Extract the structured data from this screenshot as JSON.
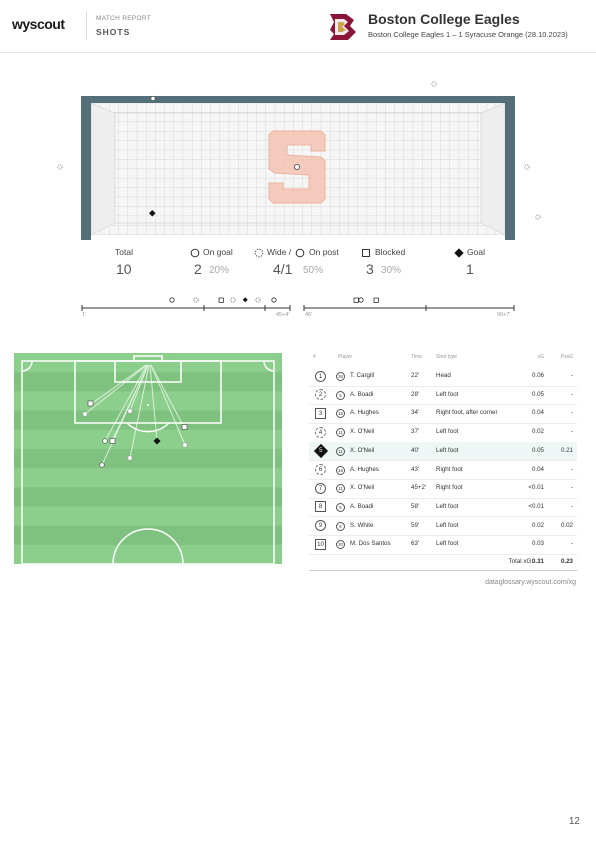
{
  "header": {
    "logo": "wyscout",
    "report_title": "MATCH REPORT",
    "report_subtitle": "SHOTS",
    "team_name": "Boston College Eagles",
    "match": "Boston College Eagles 1 – 1 Syracuse Orange (28.10.2023)",
    "crest_icon": "boston-college-crest-icon"
  },
  "stats": {
    "total": {
      "label": "Total",
      "value": "10"
    },
    "on_goal": {
      "label": "On goal",
      "value": "2",
      "pct": "20%"
    },
    "wide_post": {
      "label_a": "Wide /",
      "label_b": "On post",
      "value": "4/1",
      "pct": "50%"
    },
    "blocked": {
      "label": "Blocked",
      "value": "3",
      "pct": "30%"
    },
    "goal": {
      "label": "Goal",
      "value": "1"
    }
  },
  "timeline": {
    "first_half": {
      "start": "1'",
      "end": "45+4'"
    },
    "second_half": {
      "start": "46'",
      "end": "90+7'"
    }
  },
  "table": {
    "headers": {
      "num": "#",
      "player": "Player",
      "time": "Time",
      "type": "Shot type",
      "xg": "xG",
      "psxg": "PsxG"
    },
    "rows": [
      {
        "n": "1",
        "shape": "circle",
        "pnum": "26",
        "player": "T. Cargill",
        "time": "22'",
        "type": "Head",
        "xg": "0.06",
        "psxg": "-"
      },
      {
        "n": "2",
        "shape": "dashed",
        "pnum": "5",
        "player": "A. Boadi",
        "time": "28'",
        "type": "Left foot",
        "xg": "0.05",
        "psxg": "-"
      },
      {
        "n": "3",
        "shape": "square",
        "pnum": "16",
        "player": "A. Hughes",
        "time": "34'",
        "type": "Right foot, after corner",
        "xg": "0.04",
        "psxg": "-"
      },
      {
        "n": "4",
        "shape": "dashed",
        "pnum": "11",
        "player": "X. O'Neil",
        "time": "37'",
        "type": "Left foot",
        "xg": "0.02",
        "psxg": "-"
      },
      {
        "n": "5",
        "shape": "goal",
        "pnum": "11",
        "player": "X. O'Neil",
        "time": "40'",
        "type": "Left foot",
        "xg": "0.05",
        "psxg": "0.21"
      },
      {
        "n": "6",
        "shape": "dashed",
        "pnum": "16",
        "player": "A. Hughes",
        "time": "43'",
        "type": "Right foot",
        "xg": "0.04",
        "psxg": "-"
      },
      {
        "n": "7",
        "shape": "circle",
        "pnum": "11",
        "player": "X. O'Neil",
        "time": "45+2'",
        "type": "Right foot",
        "xg": "<0.01",
        "psxg": "-"
      },
      {
        "n": "8",
        "shape": "square",
        "pnum": "5",
        "player": "A. Boadi",
        "time": "58'",
        "type": "Left foot",
        "xg": "<0.01",
        "psxg": "-"
      },
      {
        "n": "9",
        "shape": "circle",
        "pnum": "6",
        "player": "S. White",
        "time": "59'",
        "type": "Left foot",
        "xg": "0.02",
        "psxg": "0.02"
      },
      {
        "n": "10",
        "shape": "square",
        "pnum": "20",
        "player": "M. Dos Santos",
        "time": "63'",
        "type": "Left foot",
        "xg": "0.03",
        "psxg": "-"
      }
    ],
    "total_label": "Total xG:",
    "total_xg": "0.31",
    "total_psxg": "0.23"
  },
  "footnote": "dataglossary.wyscout.com/xg",
  "page_number": "12",
  "colors": {
    "goal_frame": "#546e7a",
    "pitch_light": "#8ccf8c",
    "pitch_dark": "#7fc27f",
    "opponent_logo": "#f4c4b2"
  }
}
